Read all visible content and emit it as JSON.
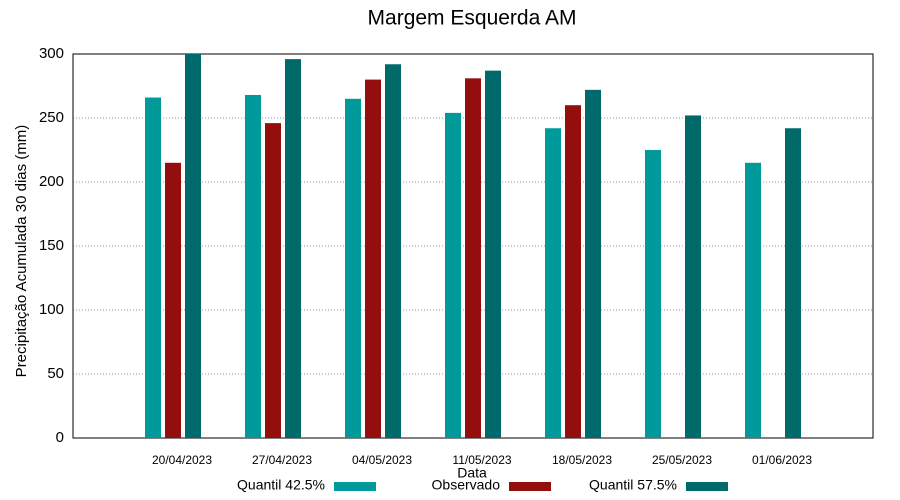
{
  "chart_data": {
    "type": "bar",
    "title": "Margem Esquerda AM",
    "x_label": "Data",
    "y_label": "Precipitação Acumulada 30 dias (mm)",
    "categories": [
      "20/04/2023",
      "27/04/2023",
      "04/05/2023",
      "11/05/2023",
      "18/05/2023",
      "25/05/2023",
      "01/06/2023"
    ],
    "series": [
      {
        "name": "Quantil 42.5%",
        "color": "#009a9a",
        "values": [
          266,
          268,
          265,
          254,
          242,
          225,
          215
        ]
      },
      {
        "name": "Observado",
        "color": "#950e0e",
        "values": [
          215,
          246,
          280,
          281,
          260,
          null,
          null
        ]
      },
      {
        "name": "Quantil 57.5%",
        "color": "#006a6a",
        "values": [
          300,
          296,
          292,
          287,
          272,
          252,
          242
        ]
      }
    ],
    "ylim": [
      0,
      300
    ],
    "yticks": [
      0,
      50,
      100,
      150,
      200,
      250,
      300
    ],
    "grid": true,
    "legend": "bottom"
  }
}
